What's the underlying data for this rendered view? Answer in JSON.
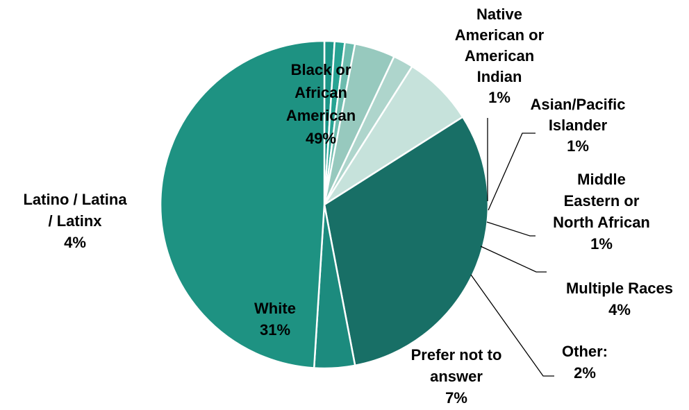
{
  "chart_data": {
    "type": "pie",
    "title": "",
    "start_angle_deg": 90,
    "direction": "clockwise",
    "slices": [
      {
        "label": "Native American or American Indian",
        "value": 1,
        "value_label": "1%",
        "color": "#1d9688"
      },
      {
        "label": "Asian/Pacific Islander",
        "value": 1,
        "value_label": "1%",
        "color": "#27a393"
      },
      {
        "label": "Middle Eastern or North African",
        "value": 1,
        "value_label": "1%",
        "color": "#6dbcae"
      },
      {
        "label": "Multiple Races",
        "value": 4,
        "value_label": "4%",
        "color": "#97c9be"
      },
      {
        "label": "Other:",
        "value": 2,
        "value_label": "2%",
        "color": "#aed5cc"
      },
      {
        "label": "Prefer not to answer",
        "value": 7,
        "value_label": "7%",
        "color": "#c6e2db"
      },
      {
        "label": "White",
        "value": 31,
        "value_label": "31%",
        "color": "#186f66"
      },
      {
        "label": "Latino / Latina / Latinx",
        "value": 4,
        "value_label": "4%",
        "color": "#1c8b7e"
      },
      {
        "label": "Black or African American",
        "value": 49,
        "value_label": "49%",
        "color": "#1e9282"
      }
    ]
  },
  "labels": [
    {
      "id": "native",
      "lines": [
        "Native",
        "American or",
        "American",
        "Indian",
        "1%"
      ]
    },
    {
      "id": "asian",
      "lines": [
        "Asian/Pacific",
        "Islander",
        "1%"
      ]
    },
    {
      "id": "mena",
      "lines": [
        "Middle",
        "Eastern or",
        "North African",
        "1%"
      ]
    },
    {
      "id": "multiple",
      "lines": [
        "Multiple Races",
        "4%"
      ]
    },
    {
      "id": "other",
      "lines": [
        "Other:",
        "2%"
      ]
    },
    {
      "id": "prefer",
      "lines": [
        "Prefer not to",
        "answer",
        "7%"
      ]
    },
    {
      "id": "white",
      "lines": [
        "White",
        "31%"
      ]
    },
    {
      "id": "latino",
      "lines": [
        "Latino / Latina",
        "/ Latinx",
        "4%"
      ]
    },
    {
      "id": "black",
      "lines": [
        "Black or",
        "African",
        "American",
        "49%"
      ]
    }
  ]
}
